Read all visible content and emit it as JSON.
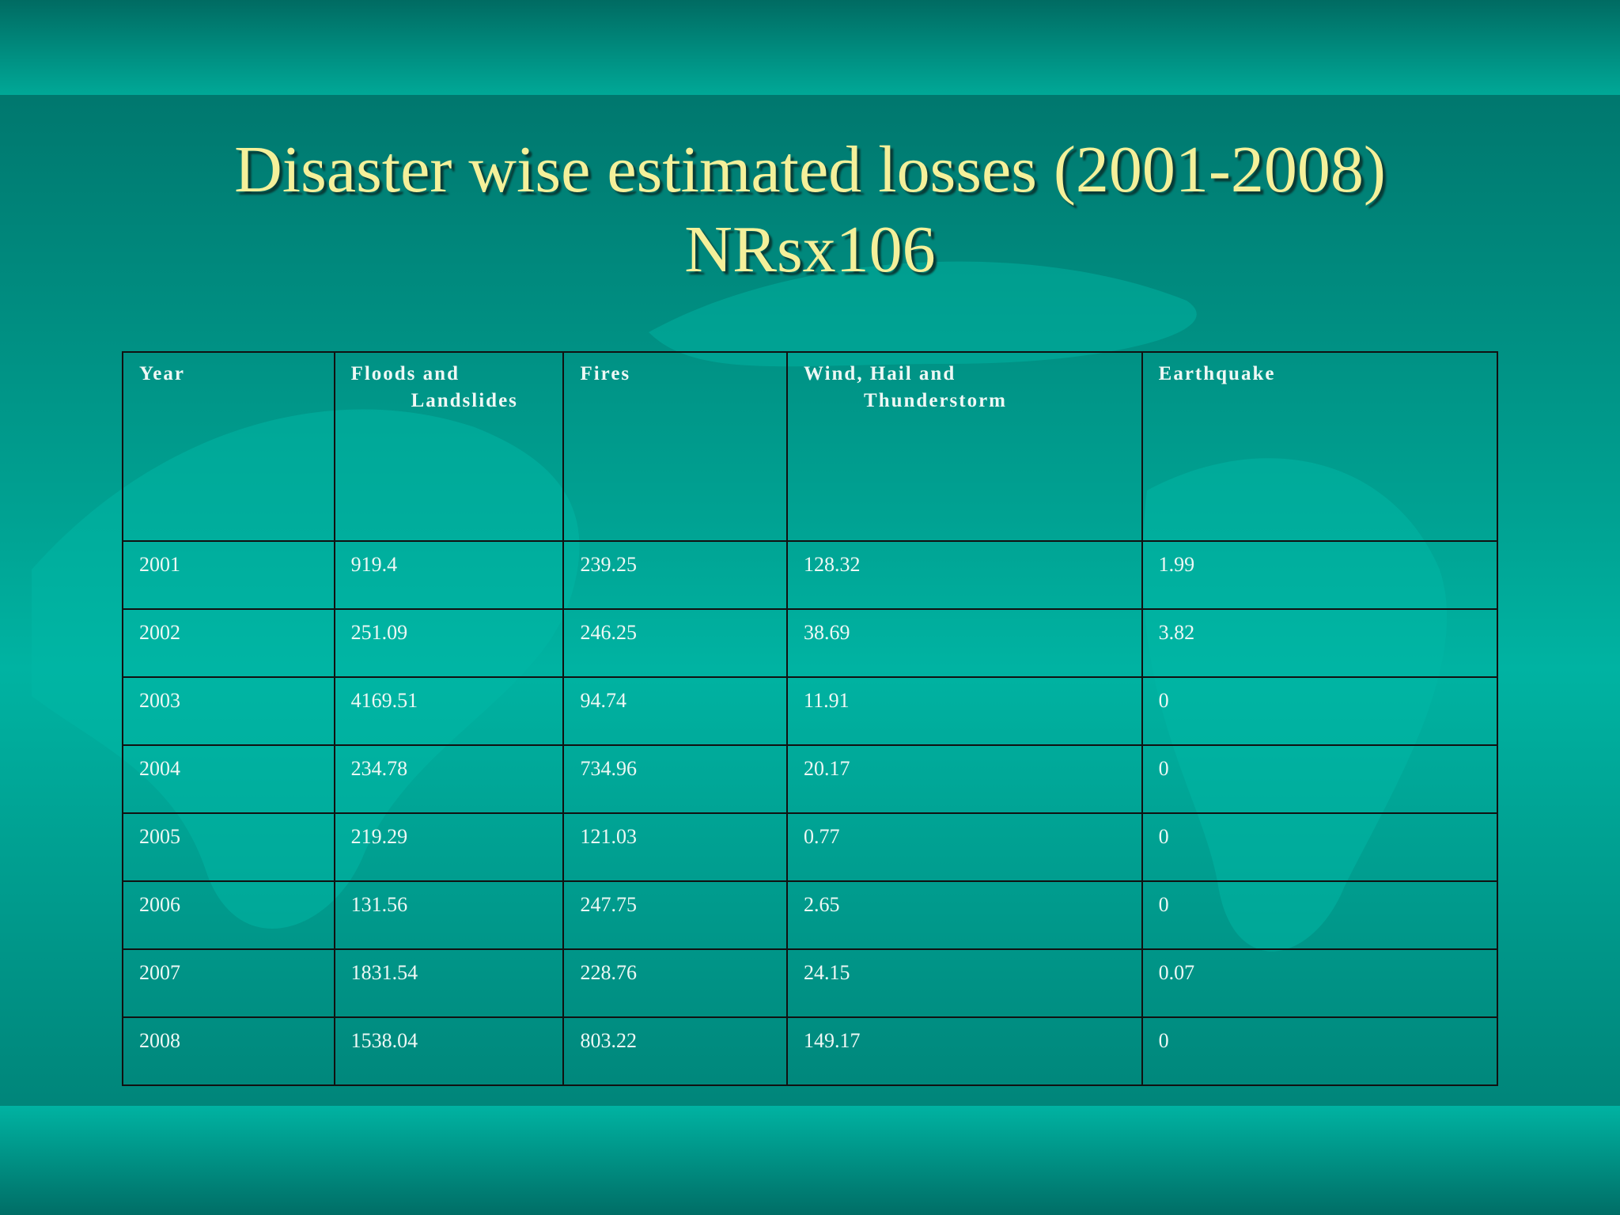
{
  "title": {
    "line1": "Disaster wise estimated losses (2001-2008)",
    "line2": "NRsx106"
  },
  "table": {
    "header": [
      [
        "Year"
      ],
      [
        "Floods and",
        "Landslides"
      ],
      [
        "Fires"
      ],
      [
        "Wind, Hail and",
        "Thunderstorm"
      ],
      [
        "Earthquake"
      ]
    ],
    "rows": [
      [
        "2001",
        "919.4",
        "239.25",
        "128.32",
        "1.99"
      ],
      [
        "2002",
        "251.09",
        "246.25",
        "38.69",
        "3.82"
      ],
      [
        "2003",
        "4169.51",
        "94.74",
        "11.91",
        "0"
      ],
      [
        "2004",
        "234.78",
        "734.96",
        "20.17",
        "0"
      ],
      [
        "2005",
        "219.29",
        "121.03",
        "0.77",
        "0"
      ],
      [
        "2006",
        "131.56",
        "247.75",
        "2.65",
        "0"
      ],
      [
        "2007",
        "1831.54",
        "228.76",
        "24.15",
        "0.07"
      ],
      [
        "2008",
        "1538.04",
        "803.22",
        "149.17",
        "0"
      ]
    ]
  }
}
